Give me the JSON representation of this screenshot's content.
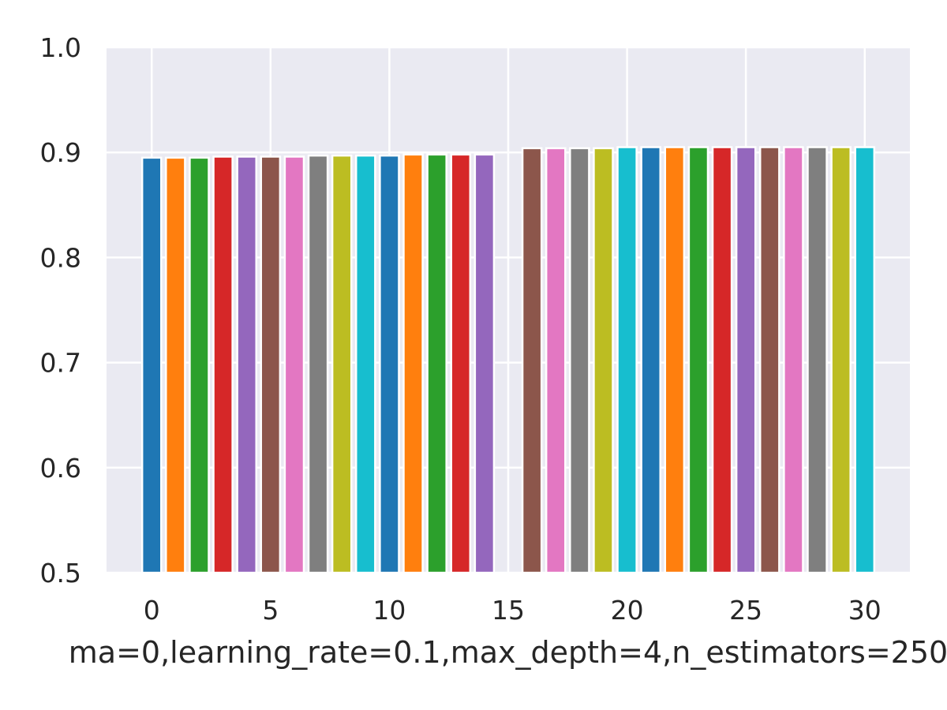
{
  "chart_data": {
    "type": "bar",
    "title": "",
    "xlabel": "ma=0,learning_rate=0.1,max_depth=4,n_estimators=250",
    "ylabel": "",
    "x": [
      0,
      1,
      2,
      3,
      4,
      5,
      6,
      7,
      8,
      9,
      10,
      11,
      12,
      13,
      14,
      16,
      17,
      18,
      19,
      20,
      21,
      22,
      23,
      24,
      25,
      26,
      27,
      28,
      29,
      30
    ],
    "values": [
      0.895,
      0.895,
      0.895,
      0.896,
      0.896,
      0.896,
      0.896,
      0.897,
      0.897,
      0.897,
      0.897,
      0.898,
      0.898,
      0.898,
      0.898,
      0.904,
      0.904,
      0.904,
      0.904,
      0.905,
      0.905,
      0.905,
      0.905,
      0.905,
      0.905,
      0.905,
      0.905,
      0.905,
      0.905,
      0.905
    ],
    "xlim": [
      -1.9,
      31.9
    ],
    "ylim": [
      0.5,
      1.0
    ],
    "xticks": [
      0,
      5,
      10,
      15,
      20,
      25,
      30
    ],
    "yticks": [
      "0.5",
      "0.6",
      "0.7",
      "0.8",
      "0.9",
      "1.0"
    ],
    "grid": true,
    "legend": "none",
    "colors": [
      "#1f77b4",
      "#ff7f0e",
      "#2ca02c",
      "#d62728",
      "#9467bd",
      "#8c564b",
      "#e377c2",
      "#7f7f7f",
      "#bcbd22",
      "#17becf"
    ],
    "background": "#eaeaf2"
  }
}
